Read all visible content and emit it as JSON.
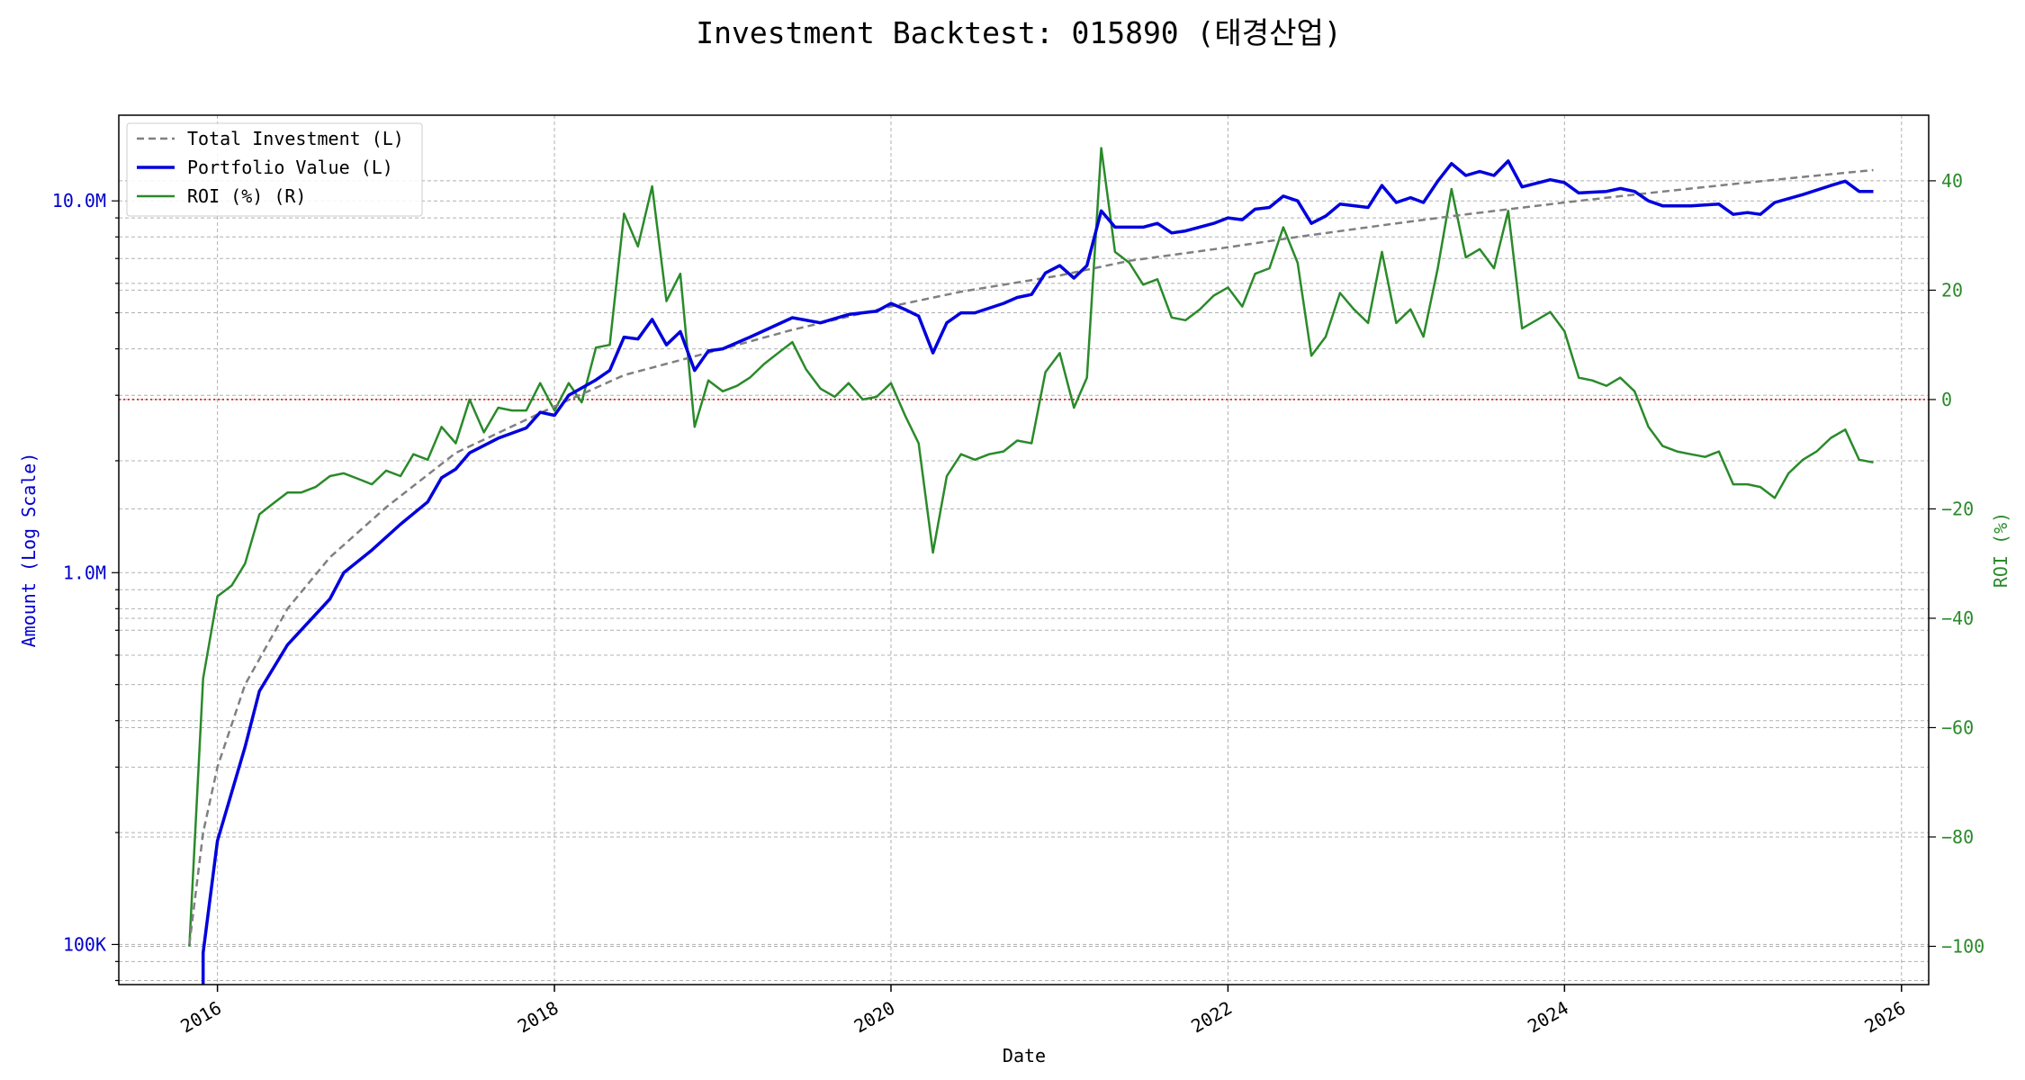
{
  "chart_data": {
    "type": "line",
    "title": "Investment Backtest: 015890 (태경산업)",
    "xlabel": "Date",
    "ylabel_left": "Amount (Log Scale)",
    "ylabel_right": "ROI (%)",
    "left_scale": "log",
    "left_ylim": [
      78000,
      17000000
    ],
    "right_ylim": [
      -107,
      52
    ],
    "xlim": [
      "2015-06-01",
      "2026-03-01"
    ],
    "x_ticks": [
      "2016",
      "2018",
      "2020",
      "2022",
      "2024",
      "2026"
    ],
    "left_ticks": [
      {
        "value": 100000,
        "label": "100K"
      },
      {
        "value": 1000000,
        "label": "1.0M"
      },
      {
        "value": 10000000,
        "label": "10.0M"
      }
    ],
    "right_ticks": [
      -100,
      -80,
      -60,
      -40,
      -20,
      0,
      20,
      40
    ],
    "grid": true,
    "legend_position": "top-left",
    "colors": {
      "total_investment": "#808080",
      "portfolio_value": "#0000dd",
      "roi": "#2a8a2a",
      "zero_line": "#dd0000",
      "left_axis": "#0000cc",
      "right_axis": "#2a8a2a"
    },
    "reference_line": {
      "axis": "right",
      "value": 0
    },
    "series": [
      {
        "name": "Total Investment (L)",
        "axis": "left",
        "style": "dashed",
        "points": [
          [
            "2015-11-01",
            100000
          ],
          [
            "2015-12-01",
            200000
          ],
          [
            "2016-01-01",
            300000
          ],
          [
            "2016-03-01",
            500000
          ],
          [
            "2016-06-01",
            800000
          ],
          [
            "2016-09-01",
            1100000
          ],
          [
            "2017-01-01",
            1500000
          ],
          [
            "2017-06-01",
            2100000
          ],
          [
            "2018-01-01",
            2800000
          ],
          [
            "2018-06-01",
            3400000
          ],
          [
            "2019-01-01",
            4000000
          ],
          [
            "2019-06-01",
            4500000
          ],
          [
            "2020-01-01",
            5200000
          ],
          [
            "2020-06-01",
            5700000
          ],
          [
            "2021-01-01",
            6300000
          ],
          [
            "2021-06-01",
            6900000
          ],
          [
            "2022-01-01",
            7500000
          ],
          [
            "2022-06-01",
            8000000
          ],
          [
            "2023-01-01",
            8700000
          ],
          [
            "2023-06-01",
            9200000
          ],
          [
            "2024-01-01",
            9900000
          ],
          [
            "2024-06-01",
            10400000
          ],
          [
            "2025-01-01",
            11100000
          ],
          [
            "2025-06-01",
            11600000
          ],
          [
            "2025-11-01",
            12100000
          ]
        ]
      },
      {
        "name": "Portfolio Value (L)",
        "axis": "left",
        "style": "solid",
        "points": [
          [
            "2015-12-01",
            95000
          ],
          [
            "2016-01-01",
            190000
          ],
          [
            "2016-03-01",
            340000
          ],
          [
            "2016-04-01",
            480000
          ],
          [
            "2016-06-01",
            640000
          ],
          [
            "2016-09-01",
            850000
          ],
          [
            "2016-10-01",
            1000000
          ],
          [
            "2016-12-01",
            1150000
          ],
          [
            "2017-02-01",
            1350000
          ],
          [
            "2017-04-01",
            1550000
          ],
          [
            "2017-05-01",
            1800000
          ],
          [
            "2017-06-01",
            1900000
          ],
          [
            "2017-07-01",
            2100000
          ],
          [
            "2017-09-01",
            2300000
          ],
          [
            "2017-11-01",
            2450000
          ],
          [
            "2017-12-01",
            2700000
          ],
          [
            "2018-01-01",
            2650000
          ],
          [
            "2018-02-01",
            3000000
          ],
          [
            "2018-04-01",
            3300000
          ],
          [
            "2018-05-01",
            3500000
          ],
          [
            "2018-06-01",
            4300000
          ],
          [
            "2018-07-01",
            4250000
          ],
          [
            "2018-08-01",
            4800000
          ],
          [
            "2018-09-01",
            4100000
          ],
          [
            "2018-10-01",
            4450000
          ],
          [
            "2018-11-01",
            3500000
          ],
          [
            "2018-12-01",
            3950000
          ],
          [
            "2019-01-01",
            4000000
          ],
          [
            "2019-03-01",
            4300000
          ],
          [
            "2019-06-01",
            4850000
          ],
          [
            "2019-08-01",
            4700000
          ],
          [
            "2019-10-01",
            4950000
          ],
          [
            "2019-12-01",
            5050000
          ],
          [
            "2020-01-01",
            5300000
          ],
          [
            "2020-02-01",
            5100000
          ],
          [
            "2020-03-01",
            4900000
          ],
          [
            "2020-04-01",
            3900000
          ],
          [
            "2020-05-01",
            4700000
          ],
          [
            "2020-06-01",
            5000000
          ],
          [
            "2020-07-01",
            5000000
          ],
          [
            "2020-09-01",
            5300000
          ],
          [
            "2020-10-01",
            5500000
          ],
          [
            "2020-11-01",
            5600000
          ],
          [
            "2020-12-01",
            6400000
          ],
          [
            "2021-01-01",
            6700000
          ],
          [
            "2021-02-01",
            6200000
          ],
          [
            "2021-03-01",
            6700000
          ],
          [
            "2021-04-01",
            9400000
          ],
          [
            "2021-05-01",
            8500000
          ],
          [
            "2021-07-01",
            8500000
          ],
          [
            "2021-08-01",
            8700000
          ],
          [
            "2021-09-01",
            8200000
          ],
          [
            "2021-10-01",
            8300000
          ],
          [
            "2021-12-01",
            8700000
          ],
          [
            "2022-01-01",
            9000000
          ],
          [
            "2022-02-01",
            8900000
          ],
          [
            "2022-03-01",
            9500000
          ],
          [
            "2022-04-01",
            9600000
          ],
          [
            "2022-05-01",
            10300000
          ],
          [
            "2022-06-01",
            10000000
          ],
          [
            "2022-07-01",
            8700000
          ],
          [
            "2022-08-01",
            9100000
          ],
          [
            "2022-09-01",
            9800000
          ],
          [
            "2022-11-01",
            9600000
          ],
          [
            "2022-12-01",
            11000000
          ],
          [
            "2023-01-01",
            9900000
          ],
          [
            "2023-02-01",
            10200000
          ],
          [
            "2023-03-01",
            9900000
          ],
          [
            "2023-04-01",
            11300000
          ],
          [
            "2023-05-01",
            12600000
          ],
          [
            "2023-06-01",
            11700000
          ],
          [
            "2023-07-01",
            12000000
          ],
          [
            "2023-08-01",
            11700000
          ],
          [
            "2023-09-01",
            12800000
          ],
          [
            "2023-10-01",
            10900000
          ],
          [
            "2023-12-01",
            11400000
          ],
          [
            "2024-01-01",
            11200000
          ],
          [
            "2024-02-01",
            10500000
          ],
          [
            "2024-04-01",
            10600000
          ],
          [
            "2024-05-01",
            10800000
          ],
          [
            "2024-06-01",
            10600000
          ],
          [
            "2024-07-01",
            10000000
          ],
          [
            "2024-08-01",
            9700000
          ],
          [
            "2024-10-01",
            9700000
          ],
          [
            "2024-12-01",
            9800000
          ],
          [
            "2025-01-01",
            9200000
          ],
          [
            "2025-02-01",
            9300000
          ],
          [
            "2025-03-01",
            9200000
          ],
          [
            "2025-04-01",
            9900000
          ],
          [
            "2025-06-01",
            10400000
          ],
          [
            "2025-08-01",
            11000000
          ],
          [
            "2025-09-01",
            11300000
          ],
          [
            "2025-10-01",
            10600000
          ],
          [
            "2025-11-01",
            10600000
          ]
        ]
      },
      {
        "name": "ROI (%) (R)",
        "axis": "right",
        "style": "solid",
        "points": [
          [
            "2015-11-01",
            -100
          ],
          [
            "2015-12-01",
            -51
          ],
          [
            "2016-01-01",
            -36
          ],
          [
            "2016-02-01",
            -34
          ],
          [
            "2016-03-01",
            -30
          ],
          [
            "2016-04-01",
            -21
          ],
          [
            "2016-05-01",
            -19
          ],
          [
            "2016-06-01",
            -17
          ],
          [
            "2016-07-01",
            -17
          ],
          [
            "2016-08-01",
            -16
          ],
          [
            "2016-09-01",
            -14
          ],
          [
            "2016-10-01",
            -13.5
          ],
          [
            "2016-11-01",
            -14.5
          ],
          [
            "2016-12-01",
            -15.5
          ],
          [
            "2017-01-01",
            -13
          ],
          [
            "2017-02-01",
            -14
          ],
          [
            "2017-03-01",
            -10
          ],
          [
            "2017-04-01",
            -11
          ],
          [
            "2017-05-01",
            -5
          ],
          [
            "2017-06-01",
            -8
          ],
          [
            "2017-07-01",
            0
          ],
          [
            "2017-08-01",
            -6
          ],
          [
            "2017-09-01",
            -1.5
          ],
          [
            "2017-10-01",
            -2
          ],
          [
            "2017-11-01",
            -2
          ],
          [
            "2017-12-01",
            3
          ],
          [
            "2018-01-01",
            -2
          ],
          [
            "2018-02-01",
            3
          ],
          [
            "2018-03-01",
            -0.5
          ],
          [
            "2018-04-01",
            9.5
          ],
          [
            "2018-05-01",
            10
          ],
          [
            "2018-06-01",
            34
          ],
          [
            "2018-07-01",
            28
          ],
          [
            "2018-08-01",
            39
          ],
          [
            "2018-09-01",
            18
          ],
          [
            "2018-10-01",
            23
          ],
          [
            "2018-11-01",
            -5
          ],
          [
            "2018-12-01",
            3.5
          ],
          [
            "2019-01-01",
            1.5
          ],
          [
            "2019-02-01",
            2.5
          ],
          [
            "2019-03-01",
            4
          ],
          [
            "2019-04-01",
            6.5
          ],
          [
            "2019-05-01",
            8.5
          ],
          [
            "2019-06-01",
            10.5
          ],
          [
            "2019-07-01",
            5.5
          ],
          [
            "2019-08-01",
            2
          ],
          [
            "2019-09-01",
            0.5
          ],
          [
            "2019-10-01",
            3
          ],
          [
            "2019-11-01",
            0
          ],
          [
            "2019-12-01",
            0.5
          ],
          [
            "2020-01-01",
            3
          ],
          [
            "2020-02-01",
            -3
          ],
          [
            "2020-03-01",
            -8
          ],
          [
            "2020-04-01",
            -28
          ],
          [
            "2020-05-01",
            -14
          ],
          [
            "2020-06-01",
            -10
          ],
          [
            "2020-07-01",
            -11
          ],
          [
            "2020-08-01",
            -10
          ],
          [
            "2020-09-01",
            -9.5
          ],
          [
            "2020-10-01",
            -7.5
          ],
          [
            "2020-11-01",
            -8
          ],
          [
            "2020-12-01",
            5
          ],
          [
            "2021-01-01",
            8.5
          ],
          [
            "2021-02-01",
            -1.5
          ],
          [
            "2021-03-01",
            4
          ],
          [
            "2021-04-01",
            46
          ],
          [
            "2021-05-01",
            27
          ],
          [
            "2021-06-01",
            25
          ],
          [
            "2021-07-01",
            21
          ],
          [
            "2021-08-01",
            22
          ],
          [
            "2021-09-01",
            15
          ],
          [
            "2021-10-01",
            14.5
          ],
          [
            "2021-11-01",
            16.5
          ],
          [
            "2021-12-01",
            19
          ],
          [
            "2022-01-01",
            20.5
          ],
          [
            "2022-02-01",
            17
          ],
          [
            "2022-03-01",
            23
          ],
          [
            "2022-04-01",
            24
          ],
          [
            "2022-05-01",
            31.5
          ],
          [
            "2022-06-01",
            25
          ],
          [
            "2022-07-01",
            8
          ],
          [
            "2022-08-01",
            11.5
          ],
          [
            "2022-09-01",
            19.5
          ],
          [
            "2022-10-01",
            16.5
          ],
          [
            "2022-11-01",
            14
          ],
          [
            "2022-12-01",
            27
          ],
          [
            "2023-01-01",
            14
          ],
          [
            "2023-02-01",
            16.5
          ],
          [
            "2023-03-01",
            11.5
          ],
          [
            "2023-04-01",
            24
          ],
          [
            "2023-05-01",
            38.5
          ],
          [
            "2023-06-01",
            26
          ],
          [
            "2023-07-01",
            27.5
          ],
          [
            "2023-08-01",
            24
          ],
          [
            "2023-09-01",
            34.5
          ],
          [
            "2023-10-01",
            13
          ],
          [
            "2023-11-01",
            14.5
          ],
          [
            "2023-12-01",
            16
          ],
          [
            "2024-01-01",
            12.5
          ],
          [
            "2024-02-01",
            4
          ],
          [
            "2024-03-01",
            3.5
          ],
          [
            "2024-04-01",
            2.5
          ],
          [
            "2024-05-01",
            4
          ],
          [
            "2024-06-01",
            1.5
          ],
          [
            "2024-07-01",
            -5
          ],
          [
            "2024-08-01",
            -8.5
          ],
          [
            "2024-09-01",
            -9.5
          ],
          [
            "2024-10-01",
            -10
          ],
          [
            "2024-11-01",
            -10.5
          ],
          [
            "2024-12-01",
            -9.5
          ],
          [
            "2025-01-01",
            -15.5
          ],
          [
            "2025-02-01",
            -15.5
          ],
          [
            "2025-03-01",
            -16
          ],
          [
            "2025-04-01",
            -18
          ],
          [
            "2025-05-01",
            -13.5
          ],
          [
            "2025-06-01",
            -11
          ],
          [
            "2025-07-01",
            -9.5
          ],
          [
            "2025-08-01",
            -7
          ],
          [
            "2025-09-01",
            -5.5
          ],
          [
            "2025-10-01",
            -11
          ],
          [
            "2025-11-01",
            -11.5
          ]
        ]
      }
    ]
  }
}
